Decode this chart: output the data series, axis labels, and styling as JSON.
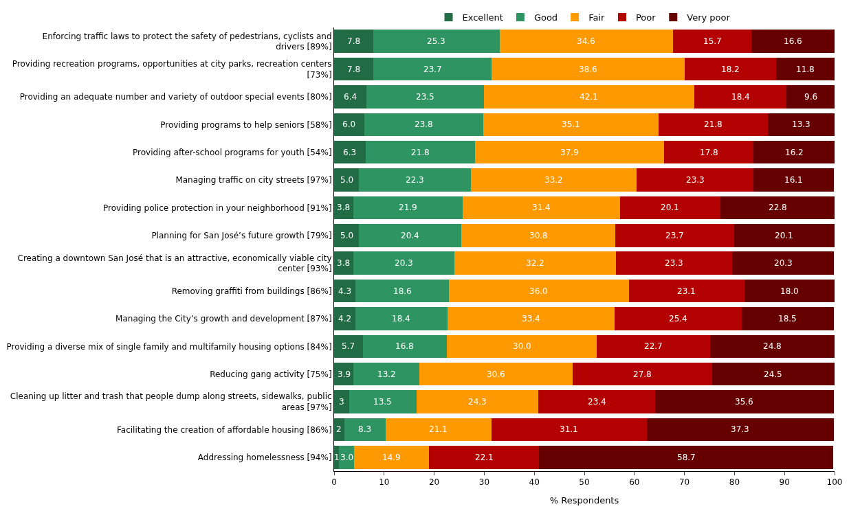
{
  "chart_data": {
    "type": "bar",
    "orientation": "horizontal",
    "stacked": true,
    "xlabel": "% Respondents",
    "xlim": [
      0,
      100
    ],
    "xticks": [
      0,
      10,
      20,
      30,
      40,
      50,
      60,
      70,
      80,
      90,
      100
    ],
    "legend": "top",
    "categories": [
      "Enforcing traffic laws to protect the safety of pedestrians, cyclists and drivers [89%]",
      "Providing recreation programs, opportunities at city parks, recreation centers [73%]",
      "Providing an adequate number and variety of outdoor special events [80%]",
      "Providing programs to help seniors [58%]",
      "Providing after-school programs for youth [54%]",
      "Managing traffic on city streets [97%]",
      "Providing police protection in your neighborhood [91%]",
      "Planning for San José’s future growth [79%]",
      "Creating a downtown San José that is an attractive, economically viable city center [93%]",
      "Removing graffiti from buildings [86%]",
      "Managing the City’s growth and development [87%]",
      "Providing a diverse mix of single family and multifamily housing options [84%]",
      "Reducing gang activity [75%]",
      "Cleaning up litter and trash that people dump along streets, sidewalks, public areas [97%]",
      "Facilitating the creation of affordable housing [86%]",
      "Addressing homelessness [94%]"
    ],
    "series": [
      {
        "name": "Excellent",
        "color": "#216b45",
        "values": [
          7.8,
          7.8,
          6.4,
          6.0,
          6.3,
          5.0,
          3.8,
          5.0,
          3.8,
          4.3,
          4.2,
          5.7,
          3.9,
          3,
          2,
          1
        ],
        "value_labels": [
          "7.8",
          "7.8",
          "6.4",
          "6.0",
          "6.3",
          "5.0",
          "3.8",
          "5.0",
          "3.8",
          "4.3",
          "4.2",
          "5.7",
          "3.9",
          "3",
          "2",
          "1"
        ]
      },
      {
        "name": "Good",
        "color": "#2e9462",
        "values": [
          25.3,
          23.7,
          23.5,
          23.8,
          21.8,
          22.3,
          21.9,
          20.4,
          20.3,
          18.6,
          18.4,
          16.8,
          13.2,
          13.5,
          8.3,
          3.0
        ],
        "value_labels": [
          "25.3",
          "23.7",
          "23.5",
          "23.8",
          "21.8",
          "22.3",
          "21.9",
          "20.4",
          "20.3",
          "18.6",
          "18.4",
          "16.8",
          "13.2",
          "13.5",
          "8.3",
          "3.0"
        ]
      },
      {
        "name": "Fair",
        "color": "#ff9900",
        "values": [
          34.6,
          38.6,
          42.1,
          35.1,
          37.9,
          33.2,
          31.4,
          30.8,
          32.2,
          36.0,
          33.4,
          30.0,
          30.6,
          24.3,
          21.1,
          14.9
        ],
        "value_labels": [
          "34.6",
          "38.6",
          "42.1",
          "35.1",
          "37.9",
          "33.2",
          "31.4",
          "30.8",
          "32.2",
          "36.0",
          "33.4",
          "30.0",
          "30.6",
          "24.3",
          "21.1",
          "14.9"
        ]
      },
      {
        "name": "Poor",
        "color": "#b30000",
        "values": [
          15.7,
          18.2,
          18.4,
          21.8,
          17.8,
          23.3,
          20.1,
          23.7,
          23.3,
          23.1,
          25.4,
          22.7,
          27.8,
          23.4,
          31.1,
          22.1
        ],
        "value_labels": [
          "15.7",
          "18.2",
          "18.4",
          "21.8",
          "17.8",
          "23.3",
          "20.1",
          "23.7",
          "23.3",
          "23.1",
          "25.4",
          "22.7",
          "27.8",
          "23.4",
          "31.1",
          "22.1"
        ]
      },
      {
        "name": "Very poor",
        "color": "#660000",
        "values": [
          16.6,
          11.8,
          9.6,
          13.3,
          16.2,
          16.1,
          22.8,
          20.1,
          20.3,
          18.0,
          18.5,
          24.8,
          24.5,
          35.6,
          37.3,
          58.7
        ],
        "value_labels": [
          "16.6",
          "11.8",
          "9.6",
          "13.3",
          "16.2",
          "16.1",
          "22.8",
          "20.1",
          "20.3",
          "18.0",
          "18.5",
          "24.8",
          "24.5",
          "35.6",
          "37.3",
          "58.7"
        ]
      }
    ]
  }
}
